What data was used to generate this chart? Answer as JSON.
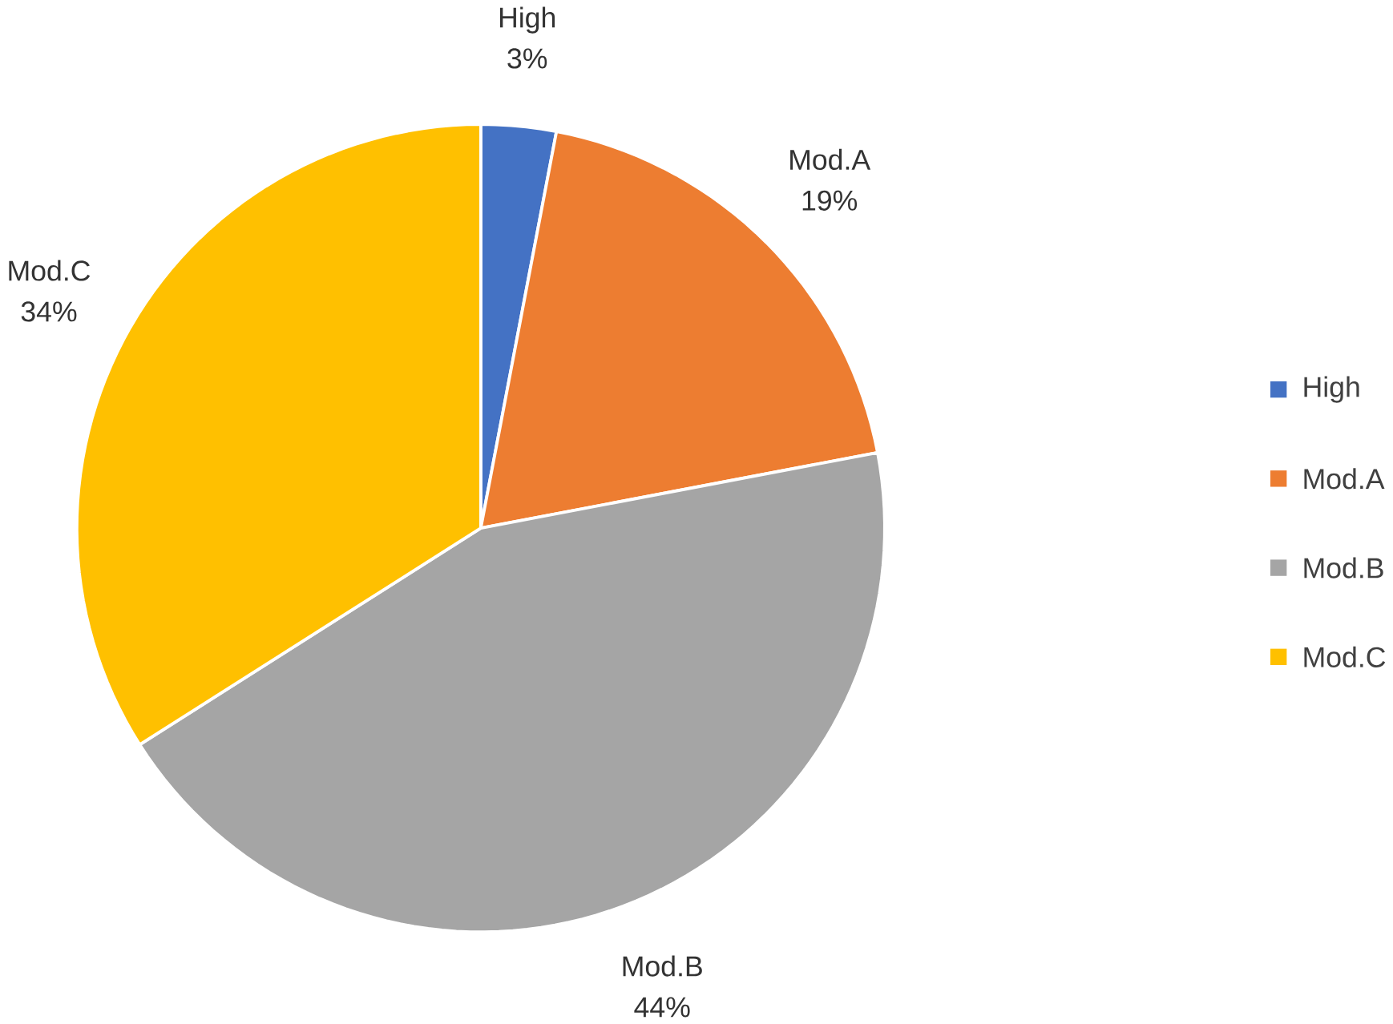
{
  "chart_data": {
    "type": "pie",
    "categories": [
      "High",
      "Mod.A",
      "Mod.B",
      "Mod.C"
    ],
    "values": [
      3,
      19,
      44,
      34
    ],
    "value_labels": [
      "3%",
      "19%",
      "44%",
      "34%"
    ],
    "colors": [
      "#4472c4",
      "#ed7d31",
      "#a5a5a5",
      "#ffc000"
    ],
    "legend": "right"
  }
}
